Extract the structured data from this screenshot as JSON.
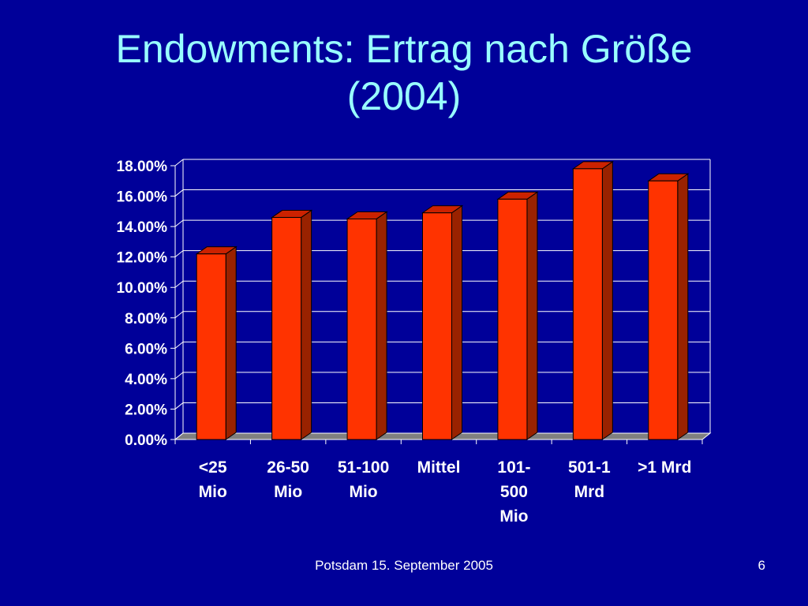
{
  "slide": {
    "title_lines": [
      "Endowments: Ertrag nach Größe",
      "(2004)"
    ],
    "footer_text": "Potsdam 15. September 2005",
    "page_number": "6"
  },
  "colors": {
    "background": "#000099",
    "title": "#99ffff",
    "bar_front": "#ff3300",
    "bar_side": "#992200",
    "bar_top": "#cc2200",
    "gridline": "#ffffff",
    "floor": "#808080"
  },
  "chart_data": {
    "type": "bar",
    "style": "3d-column",
    "categories": [
      [
        "<25",
        "Mio"
      ],
      [
        "26-50",
        "Mio"
      ],
      [
        "51-100",
        "Mio"
      ],
      [
        "Mittel"
      ],
      [
        "101-",
        "500",
        "Mio"
      ],
      [
        "501-1",
        "Mrd"
      ],
      [
        ">1 Mrd"
      ]
    ],
    "values": [
      12.2,
      14.6,
      14.5,
      14.9,
      15.8,
      17.8,
      17.0
    ],
    "ylim": [
      0,
      18
    ],
    "yticks": [
      "0.00%",
      "2.00%",
      "4.00%",
      "6.00%",
      "8.00%",
      "10.00%",
      "12.00%",
      "14.00%",
      "16.00%",
      "18.00%"
    ],
    "grid": true,
    "legend": "none",
    "title": "",
    "xlabel": "",
    "ylabel": ""
  }
}
